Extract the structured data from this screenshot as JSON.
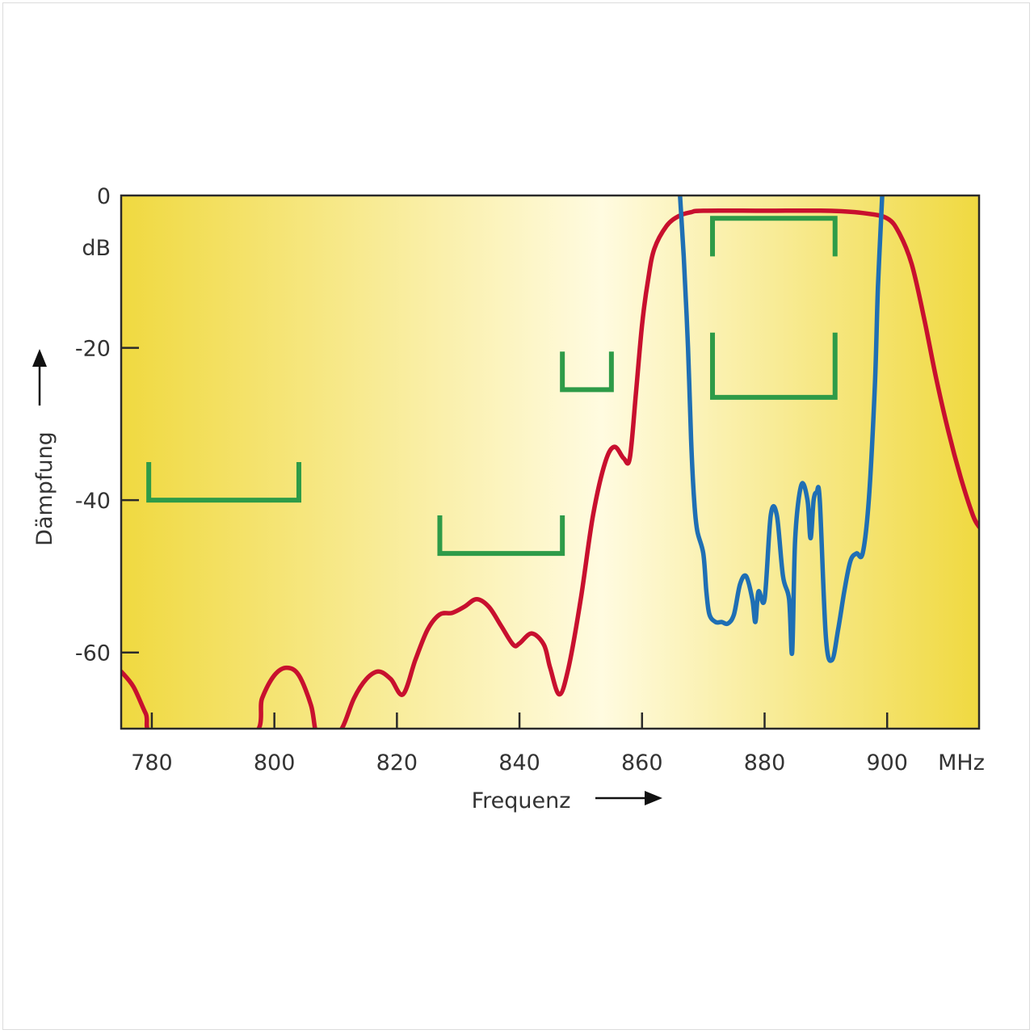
{
  "chart_data": {
    "type": "line",
    "title": "",
    "xlabel": "Frequenz",
    "ylabel": "Dämpfung",
    "x_unit": "MHz",
    "y_unit": "dB",
    "xlim": [
      775,
      915
    ],
    "ylim": [
      -70,
      0
    ],
    "x_ticks": [
      {
        "value": 780,
        "label": "780"
      },
      {
        "value": 800,
        "label": "800"
      },
      {
        "value": 820,
        "label": "820"
      },
      {
        "value": 840,
        "label": "840"
      },
      {
        "value": 860,
        "label": "860"
      },
      {
        "value": 880,
        "label": "880"
      },
      {
        "value": 900,
        "label": "900"
      }
    ],
    "y_ticks": [
      {
        "value": 0,
        "label": "0"
      },
      {
        "value": -20,
        "label": "-20"
      },
      {
        "value": -40,
        "label": "-40"
      },
      {
        "value": -60,
        "label": "-60"
      }
    ],
    "grid": false,
    "colors": {
      "red_curve": "#c8102e",
      "blue_curve": "#1f6fb4",
      "masks": "#2e9b48",
      "background_edge": "#f0d940",
      "background_center": "#fffbe0"
    },
    "series": [
      {
        "color": "#c8102e",
        "points": [
          [
            775,
            -62.5
          ],
          [
            777,
            -64.5
          ],
          [
            779,
            -68
          ],
          [
            781,
            -71
          ],
          [
            796,
            -71
          ],
          [
            798,
            -66
          ],
          [
            800,
            -63
          ],
          [
            802,
            -62
          ],
          [
            804,
            -63
          ],
          [
            806,
            -67
          ],
          [
            807,
            -71
          ],
          [
            809,
            -71
          ],
          [
            811,
            -70
          ],
          [
            813,
            -66
          ],
          [
            815,
            -63.5
          ],
          [
            817,
            -62.5
          ],
          [
            819,
            -63.5
          ],
          [
            821,
            -65.5
          ],
          [
            823,
            -61
          ],
          [
            825,
            -57
          ],
          [
            827,
            -55
          ],
          [
            829,
            -54.8
          ],
          [
            831,
            -54
          ],
          [
            833,
            -53
          ],
          [
            835,
            -54
          ],
          [
            837,
            -56.5
          ],
          [
            839,
            -59
          ],
          [
            840,
            -58.8
          ],
          [
            842,
            -57.5
          ],
          [
            844,
            -59
          ],
          [
            845,
            -62
          ],
          [
            846.5,
            -65.5
          ],
          [
            848,
            -62
          ],
          [
            850,
            -53
          ],
          [
            852,
            -42
          ],
          [
            854,
            -35
          ],
          [
            855.5,
            -33
          ],
          [
            857,
            -34.5
          ],
          [
            858,
            -34.5
          ],
          [
            859,
            -26
          ],
          [
            860,
            -17
          ],
          [
            861,
            -11
          ],
          [
            862,
            -7
          ],
          [
            864,
            -4
          ],
          [
            866,
            -2.7
          ],
          [
            868,
            -2.2
          ],
          [
            870,
            -2
          ],
          [
            880,
            -2
          ],
          [
            890,
            -2
          ],
          [
            896,
            -2.3
          ],
          [
            900,
            -3
          ],
          [
            902,
            -5
          ],
          [
            904,
            -9
          ],
          [
            906,
            -16
          ],
          [
            908,
            -24
          ],
          [
            910,
            -31
          ],
          [
            912,
            -37
          ],
          [
            914,
            -42
          ],
          [
            915,
            -43.5
          ]
        ]
      },
      {
        "color": "#1f6fb4",
        "points": [
          [
            866.2,
            0
          ],
          [
            866.8,
            -8
          ],
          [
            867.5,
            -20
          ],
          [
            868,
            -32
          ],
          [
            868.5,
            -40
          ],
          [
            869,
            -44
          ],
          [
            870,
            -47
          ],
          [
            870.5,
            -52
          ],
          [
            871,
            -55
          ],
          [
            872,
            -56
          ],
          [
            873,
            -56
          ],
          [
            874,
            -56.2
          ],
          [
            875,
            -55
          ],
          [
            876,
            -51
          ],
          [
            877,
            -50
          ],
          [
            878,
            -53
          ],
          [
            878.5,
            -56
          ],
          [
            879,
            -52
          ],
          [
            880,
            -53
          ],
          [
            881,
            -42
          ],
          [
            882,
            -42
          ],
          [
            883,
            -50
          ],
          [
            884,
            -53
          ],
          [
            884.5,
            -60
          ],
          [
            885,
            -45
          ],
          [
            886,
            -38
          ],
          [
            887,
            -40
          ],
          [
            887.5,
            -45
          ],
          [
            888,
            -40
          ],
          [
            888.5,
            -39
          ],
          [
            889,
            -40
          ],
          [
            890,
            -58
          ],
          [
            891,
            -61
          ],
          [
            892,
            -57
          ],
          [
            893,
            -52
          ],
          [
            894,
            -48
          ],
          [
            895,
            -47
          ],
          [
            896,
            -47
          ],
          [
            897,
            -40
          ],
          [
            898,
            -25
          ],
          [
            898.5,
            -12
          ],
          [
            899.2,
            0
          ]
        ]
      }
    ],
    "masks": [
      {
        "x": [
          779.5,
          804
        ],
        "y_top": -35,
        "y_bottom": -40
      },
      {
        "x": [
          827,
          847
        ],
        "y_top": -42,
        "y_bottom": -47
      },
      {
        "x": [
          847,
          855
        ],
        "y_top": -20.5,
        "y_bottom": -25.5
      },
      {
        "x": [
          871.5,
          891.5
        ],
        "y_top": -18,
        "y_bottom": -26.5
      },
      {
        "x": [
          871.5,
          891.5
        ],
        "y_top": -8,
        "y_bottom": -3
      }
    ],
    "annotations": {
      "ylabel_arrow": "up",
      "xlabel_arrow": "right"
    }
  }
}
